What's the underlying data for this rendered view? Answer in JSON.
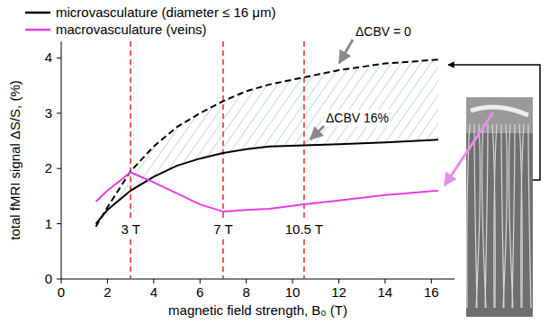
{
  "chart_data": {
    "type": "line",
    "x_label": "magnetic field strength, B₀ (T)",
    "y_label": "total fMRI signal ΔS/S, (%)",
    "x": [
      1.5,
      2,
      3,
      4,
      5,
      6,
      7,
      8,
      9,
      10.5,
      12,
      14,
      16.3
    ],
    "series": [
      {
        "name": "ΔCBV = 0",
        "color": "#000000",
        "line_style": "dashed",
        "values": [
          0.95,
          1.3,
          1.95,
          2.4,
          2.75,
          3.0,
          3.22,
          3.4,
          3.52,
          3.65,
          3.78,
          3.9,
          3.97
        ]
      },
      {
        "name": "ΔCBV 16%",
        "color": "#000000",
        "line_style": "solid",
        "values": [
          1.0,
          1.25,
          1.6,
          1.85,
          2.05,
          2.18,
          2.28,
          2.35,
          2.4,
          2.42,
          2.44,
          2.47,
          2.52
        ]
      },
      {
        "color": "#e63ce6",
        "line_style": "solid",
        "values": [
          1.4,
          1.6,
          1.93,
          1.75,
          1.55,
          1.35,
          1.22,
          1.25,
          1.27,
          1.35,
          1.42,
          1.52,
          1.6
        ]
      }
    ],
    "legend_entries": [
      {
        "label": "microvasculature (diameter ≤ 16 μm)",
        "color": "#000000"
      },
      {
        "label": "macrovasculature (veins)",
        "color": "#e63ce6"
      }
    ],
    "legend": "top",
    "vlines": [
      {
        "x": 3,
        "label": "3 T",
        "color": "#e8352a"
      },
      {
        "x": 7,
        "label": "7 T",
        "color": "#e8352a"
      },
      {
        "x": 10.5,
        "label": "10.5 T",
        "color": "#e8352a"
      }
    ],
    "xlim": [
      0,
      17
    ],
    "ylim": [
      0,
      4.3
    ],
    "xticks": [
      0,
      2,
      4,
      6,
      8,
      10,
      12,
      14,
      16
    ],
    "yticks": [
      0,
      1,
      2,
      3,
      4
    ],
    "grid": false
  }
}
